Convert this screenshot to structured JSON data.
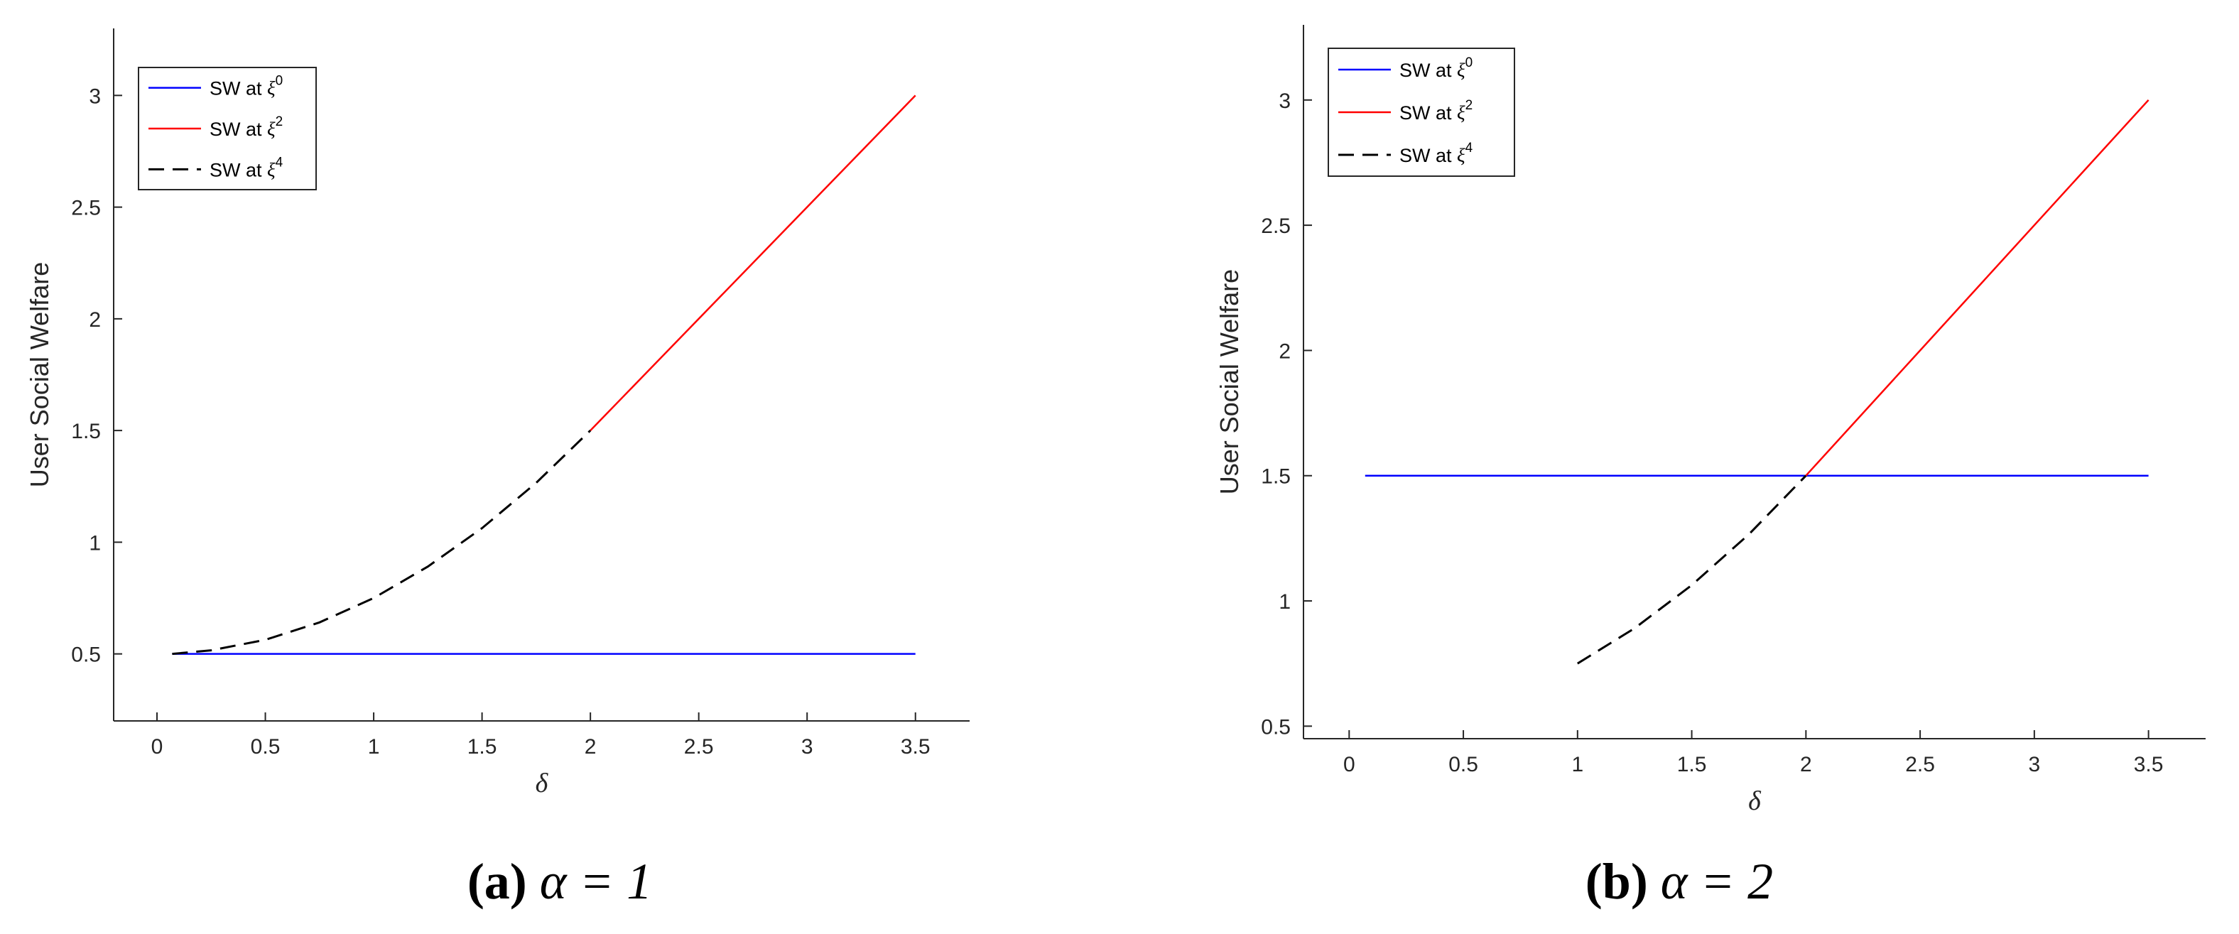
{
  "chart_data": [
    {
      "type": "line",
      "title": "",
      "xlabel": "δ",
      "ylabel": "User Social Welfare",
      "xlim": [
        -0.2,
        3.75
      ],
      "ylim": [
        0.2,
        3.3
      ],
      "xticks": [
        0,
        0.5,
        1,
        1.5,
        2,
        2.5,
        3,
        3.5
      ],
      "xtick_labels": [
        "0",
        "0.5",
        "1",
        "1.5",
        "2",
        "2.5",
        "3",
        "3.5"
      ],
      "yticks": [
        0.5,
        1,
        1.5,
        2,
        2.5,
        3
      ],
      "ytick_labels": [
        "0.5",
        "1",
        "1.5",
        "2",
        "2.5",
        "3"
      ],
      "grid": false,
      "legend_position": "top-left",
      "caption": {
        "label": "(a)",
        "math": "α = 1"
      },
      "series": [
        {
          "legend_text": "SW at ξ",
          "legend_sup": "0",
          "color": "#0000ff",
          "style": "solid",
          "x": [
            0.07,
            3.5
          ],
          "y": [
            0.5,
            0.5
          ]
        },
        {
          "legend_text": "SW at ξ",
          "legend_sup": "2",
          "color": "#ff0000",
          "style": "solid",
          "x": [
            2,
            3.5
          ],
          "y": [
            1.5,
            3.0
          ]
        },
        {
          "legend_text": "SW at ξ",
          "legend_sup": "4",
          "color": "#000000",
          "style": "dashed",
          "x": [
            0.07,
            0.25,
            0.5,
            0.75,
            1.0,
            1.25,
            1.5,
            1.75,
            2.0
          ],
          "y": [
            0.5,
            0.516,
            0.563,
            0.641,
            0.75,
            0.891,
            1.063,
            1.266,
            1.5
          ]
        }
      ]
    },
    {
      "type": "line",
      "title": "",
      "xlabel": "δ",
      "ylabel": "User Social Welfare",
      "xlim": [
        -0.2,
        3.75
      ],
      "ylim": [
        0.45,
        3.3
      ],
      "xticks": [
        0,
        0.5,
        1,
        1.5,
        2,
        2.5,
        3,
        3.5
      ],
      "xtick_labels": [
        "0",
        "0.5",
        "1",
        "1.5",
        "2",
        "2.5",
        "3",
        "3.5"
      ],
      "yticks": [
        0.5,
        1,
        1.5,
        2,
        2.5,
        3
      ],
      "ytick_labels": [
        "0.5",
        "1",
        "1.5",
        "2",
        "2.5",
        "3"
      ],
      "grid": false,
      "legend_position": "top-left",
      "caption": {
        "label": "(b)",
        "math": "α = 2"
      },
      "series": [
        {
          "legend_text": "SW at ξ",
          "legend_sup": "0",
          "color": "#0000ff",
          "style": "solid",
          "x": [
            0.07,
            3.5
          ],
          "y": [
            1.5,
            1.5
          ]
        },
        {
          "legend_text": "SW at ξ",
          "legend_sup": "2",
          "color": "#ff0000",
          "style": "solid",
          "x": [
            2,
            3.5
          ],
          "y": [
            1.5,
            3.0
          ]
        },
        {
          "legend_text": "SW at ξ",
          "legend_sup": "4",
          "color": "#000000",
          "style": "dashed",
          "x": [
            1.0,
            1.25,
            1.5,
            1.75,
            2.0
          ],
          "y": [
            0.75,
            0.891,
            1.063,
            1.266,
            1.5
          ]
        }
      ]
    }
  ]
}
